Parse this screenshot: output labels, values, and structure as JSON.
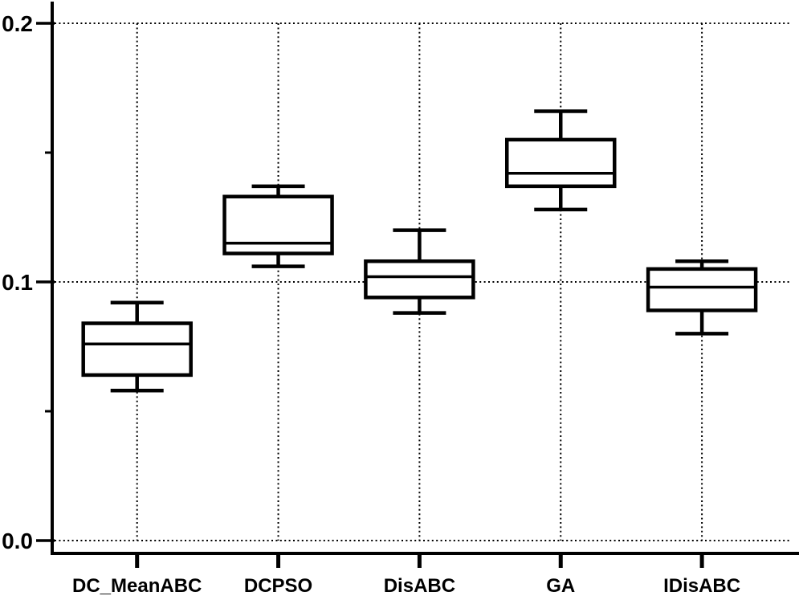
{
  "figure": {
    "background_color": "#ffffff",
    "line_color": "#000000"
  },
  "chart_data": {
    "type": "boxplot",
    "title": "",
    "xlabel": "",
    "ylabel": "",
    "legend": "none",
    "grid": {
      "horizontal": true,
      "vertical": true,
      "style": "dotted"
    },
    "ylim": [
      0.0,
      0.208
    ],
    "yticks_major": [
      {
        "value": 0.0,
        "label": "0.0"
      },
      {
        "value": 0.1,
        "label": "0.1"
      },
      {
        "value": 0.2,
        "label": "0.2"
      }
    ],
    "yticks_minor": [
      0.05,
      0.15
    ],
    "categories": [
      "DC_MeanABC",
      "DCPSO",
      "DisABC",
      "GA",
      "IDisABC"
    ],
    "series": [
      {
        "name": "DC_MeanABC",
        "whisker_low": 0.058,
        "q1": 0.064,
        "median": 0.076,
        "q3": 0.084,
        "whisker_high": 0.092
      },
      {
        "name": "DCPSO",
        "whisker_low": 0.106,
        "q1": 0.111,
        "median": 0.115,
        "q3": 0.133,
        "whisker_high": 0.137
      },
      {
        "name": "DisABC",
        "whisker_low": 0.088,
        "q1": 0.094,
        "median": 0.102,
        "q3": 0.108,
        "whisker_high": 0.12
      },
      {
        "name": "GA",
        "whisker_low": 0.128,
        "q1": 0.137,
        "median": 0.142,
        "q3": 0.155,
        "whisker_high": 0.166
      },
      {
        "name": "IDisABC",
        "whisker_low": 0.08,
        "q1": 0.089,
        "median": 0.098,
        "q3": 0.105,
        "whisker_high": 0.108
      }
    ]
  }
}
